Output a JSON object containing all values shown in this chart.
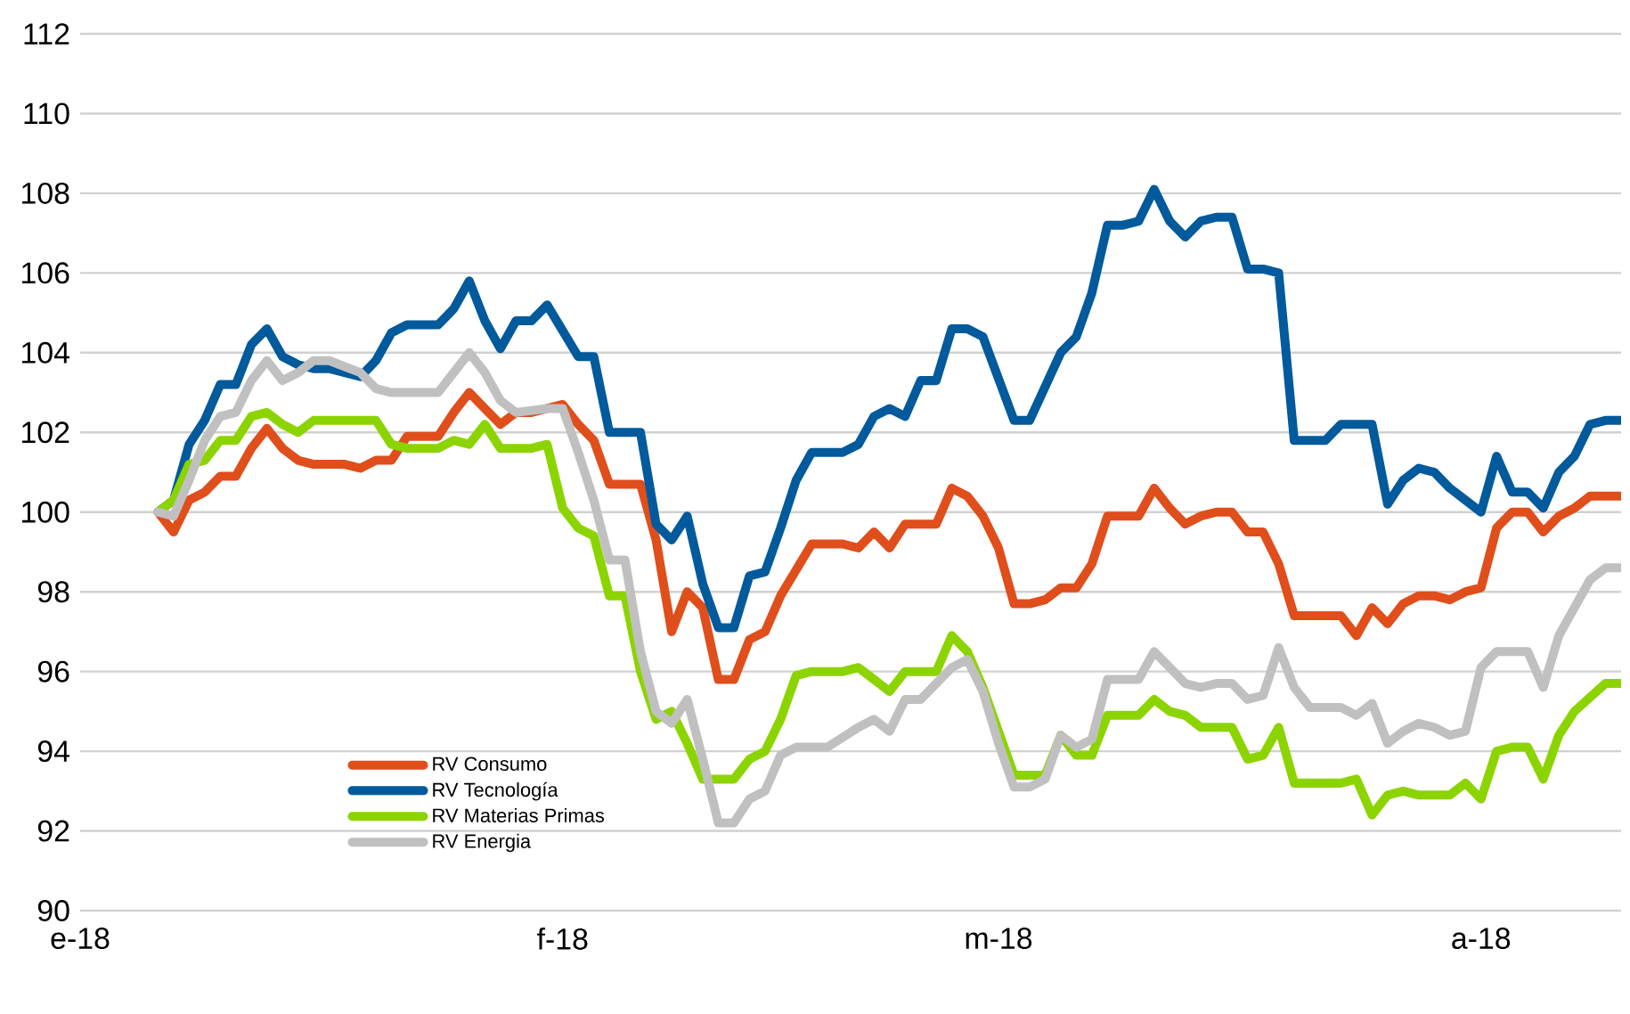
{
  "chart_data": {
    "type": "line",
    "xlim": [
      "2018-01-01",
      "2018-04-10"
    ],
    "ylim": [
      90,
      112
    ],
    "xticks": [
      {
        "value": "2018-01-01",
        "label": "e-18"
      },
      {
        "value": "2018-02-01",
        "label": "f-18"
      },
      {
        "value": "2018-03-01",
        "label": "m-18"
      },
      {
        "value": "2018-04-01",
        "label": "a-18"
      }
    ],
    "yticks": [
      90,
      92,
      94,
      96,
      98,
      100,
      102,
      104,
      106,
      108,
      110,
      112
    ],
    "grid": "y",
    "legend": "bottom left",
    "series": [
      {
        "name": "RV Consumo",
        "color": "#e04e1b",
        "x": [
          "2018-01-06",
          "2018-01-07",
          "2018-01-08",
          "2018-01-09",
          "2018-01-10",
          "2018-01-11",
          "2018-01-12",
          "2018-01-13",
          "2018-01-14",
          "2018-01-15",
          "2018-01-16",
          "2018-01-18",
          "2018-01-19",
          "2018-01-20",
          "2018-01-21",
          "2018-01-22",
          "2018-01-24",
          "2018-01-25",
          "2018-01-26",
          "2018-01-27",
          "2018-01-28",
          "2018-01-29",
          "2018-01-30",
          "2018-02-01",
          "2018-02-02",
          "2018-02-03",
          "2018-02-04",
          "2018-02-06",
          "2018-02-07",
          "2018-02-08",
          "2018-02-09",
          "2018-02-10",
          "2018-02-11",
          "2018-02-12",
          "2018-02-13",
          "2018-02-14",
          "2018-02-15",
          "2018-02-17",
          "2018-02-19",
          "2018-02-20",
          "2018-02-21",
          "2018-02-22",
          "2018-02-23",
          "2018-02-25",
          "2018-02-26",
          "2018-02-27",
          "2018-02-28",
          "2018-03-01",
          "2018-03-02",
          "2018-03-03",
          "2018-03-04",
          "2018-03-05",
          "2018-03-06",
          "2018-03-07",
          "2018-03-08",
          "2018-03-10",
          "2018-03-11",
          "2018-03-12",
          "2018-03-13",
          "2018-03-14",
          "2018-03-15",
          "2018-03-16",
          "2018-03-17",
          "2018-03-18",
          "2018-03-19",
          "2018-03-20",
          "2018-03-23",
          "2018-03-24",
          "2018-03-25",
          "2018-03-26",
          "2018-03-27",
          "2018-03-28",
          "2018-03-29",
          "2018-03-30",
          "2018-03-31",
          "2018-04-01",
          "2018-04-02",
          "2018-04-03",
          "2018-04-04",
          "2018-04-05",
          "2018-04-06",
          "2018-04-07",
          "2018-04-08",
          "2018-04-10"
        ],
        "values": [
          100,
          99.5,
          100.3,
          100.5,
          100.9,
          100.9,
          101.6,
          102.1,
          101.6,
          101.3,
          101.2,
          101.2,
          101.1,
          101.3,
          101.3,
          101.9,
          101.9,
          102.5,
          103.0,
          102.6,
          102.2,
          102.5,
          102.5,
          102.7,
          102.2,
          101.8,
          100.7,
          100.7,
          99.3,
          97.0,
          98.0,
          97.6,
          95.8,
          95.8,
          96.8,
          97.0,
          97.9,
          99.2,
          99.2,
          99.1,
          99.5,
          99.1,
          99.7,
          99.7,
          100.6,
          100.4,
          99.9,
          99.1,
          97.7,
          97.7,
          97.8,
          98.1,
          98.1,
          98.7,
          99.9,
          99.9,
          100.6,
          100.1,
          99.7,
          99.9,
          100.0,
          100.0,
          99.5,
          99.5,
          98.7,
          97.4,
          97.4,
          96.9,
          97.6,
          97.2,
          97.7,
          97.9,
          97.9,
          97.8,
          98.0,
          98.1,
          99.6,
          100.0,
          100.0,
          99.5,
          99.9,
          100.1,
          100.4,
          100.4
        ]
      },
      {
        "name": "RV Tecnología",
        "color": "#005a9c",
        "x": [
          "2018-01-06",
          "2018-01-07",
          "2018-01-08",
          "2018-01-09",
          "2018-01-10",
          "2018-01-11",
          "2018-01-12",
          "2018-01-13",
          "2018-01-14",
          "2018-01-15",
          "2018-01-16",
          "2018-01-17",
          "2018-01-19",
          "2018-01-20",
          "2018-01-21",
          "2018-01-22",
          "2018-01-24",
          "2018-01-25",
          "2018-01-26",
          "2018-01-27",
          "2018-01-28",
          "2018-01-29",
          "2018-01-30",
          "2018-01-31",
          "2018-02-02",
          "2018-02-03",
          "2018-02-04",
          "2018-02-06",
          "2018-02-07",
          "2018-02-08",
          "2018-02-09",
          "2018-02-10",
          "2018-02-11",
          "2018-02-12",
          "2018-02-13",
          "2018-02-14",
          "2018-02-15",
          "2018-02-16",
          "2018-02-17",
          "2018-02-19",
          "2018-02-20",
          "2018-02-21",
          "2018-02-22",
          "2018-02-23",
          "2018-02-24",
          "2018-02-25",
          "2018-02-26",
          "2018-02-27",
          "2018-02-28",
          "2018-03-02",
          "2018-03-03",
          "2018-03-05",
          "2018-03-06",
          "2018-03-07",
          "2018-03-08",
          "2018-03-09",
          "2018-03-10",
          "2018-03-11",
          "2018-03-12",
          "2018-03-13",
          "2018-03-14",
          "2018-03-15",
          "2018-03-16",
          "2018-03-17",
          "2018-03-18",
          "2018-03-19",
          "2018-03-20",
          "2018-03-22",
          "2018-03-23",
          "2018-03-25",
          "2018-03-26",
          "2018-03-27",
          "2018-03-28",
          "2018-03-29",
          "2018-03-30",
          "2018-03-31",
          "2018-04-01",
          "2018-04-02",
          "2018-04-03",
          "2018-04-04",
          "2018-04-05",
          "2018-04-06",
          "2018-04-07",
          "2018-04-08",
          "2018-04-09",
          "2018-04-10"
        ],
        "values": [
          100,
          100.3,
          101.7,
          102.3,
          103.2,
          103.2,
          104.2,
          104.6,
          103.9,
          103.7,
          103.6,
          103.6,
          103.4,
          103.8,
          104.5,
          104.7,
          104.7,
          105.1,
          105.8,
          104.8,
          104.1,
          104.8,
          104.8,
          105.2,
          103.9,
          103.9,
          102.0,
          102.0,
          99.7,
          99.3,
          99.9,
          98.2,
          97.1,
          97.1,
          98.4,
          98.5,
          99.6,
          100.8,
          101.5,
          101.5,
          101.7,
          102.4,
          102.6,
          102.4,
          103.3,
          103.3,
          104.6,
          104.6,
          104.4,
          102.3,
          102.3,
          104.0,
          104.4,
          105.5,
          107.2,
          107.2,
          107.3,
          108.1,
          107.3,
          106.9,
          107.3,
          107.4,
          107.4,
          106.1,
          106.1,
          106.0,
          101.8,
          101.8,
          102.2,
          102.2,
          100.2,
          100.8,
          101.1,
          101.0,
          100.6,
          100.3,
          100.0,
          101.4,
          100.5,
          100.5,
          100.1,
          101.0,
          101.4,
          102.2,
          102.3,
          102.3
        ]
      },
      {
        "name": "RV Materias Primas",
        "color": "#8cd400",
        "x": [
          "2018-01-06",
          "2018-01-07",
          "2018-01-08",
          "2018-01-09",
          "2018-01-10",
          "2018-01-11",
          "2018-01-12",
          "2018-01-13",
          "2018-01-14",
          "2018-01-15",
          "2018-01-16",
          "2018-01-20",
          "2018-01-21",
          "2018-01-22",
          "2018-01-24",
          "2018-01-25",
          "2018-01-26",
          "2018-01-27",
          "2018-01-28",
          "2018-01-30",
          "2018-01-31",
          "2018-02-01",
          "2018-02-02",
          "2018-02-03",
          "2018-02-04",
          "2018-02-05",
          "2018-02-06",
          "2018-02-07",
          "2018-02-08",
          "2018-02-09",
          "2018-02-10",
          "2018-02-12",
          "2018-02-13",
          "2018-02-14",
          "2018-02-15",
          "2018-02-16",
          "2018-02-17",
          "2018-02-19",
          "2018-02-20",
          "2018-02-21",
          "2018-02-22",
          "2018-02-23",
          "2018-02-25",
          "2018-02-26",
          "2018-02-27",
          "2018-02-28",
          "2018-03-01",
          "2018-03-02",
          "2018-03-03",
          "2018-03-04",
          "2018-03-05",
          "2018-03-06",
          "2018-03-07",
          "2018-03-08",
          "2018-03-10",
          "2018-03-11",
          "2018-03-12",
          "2018-03-13",
          "2018-03-14",
          "2018-03-16",
          "2018-03-17",
          "2018-03-18",
          "2018-03-19",
          "2018-03-20",
          "2018-03-23",
          "2018-03-24",
          "2018-03-25",
          "2018-03-26",
          "2018-03-27",
          "2018-03-28",
          "2018-03-30",
          "2018-03-31",
          "2018-04-01",
          "2018-04-02",
          "2018-04-03",
          "2018-04-04",
          "2018-04-05",
          "2018-04-06",
          "2018-04-07",
          "2018-04-09",
          "2018-04-10"
        ],
        "values": [
          100,
          100.3,
          101.2,
          101.3,
          101.8,
          101.8,
          102.4,
          102.5,
          102.2,
          102.0,
          102.3,
          102.3,
          101.7,
          101.6,
          101.6,
          101.8,
          101.7,
          102.2,
          101.6,
          101.6,
          101.7,
          100.1,
          99.6,
          99.4,
          97.9,
          97.9,
          96.0,
          94.8,
          95.0,
          94.2,
          93.3,
          93.3,
          93.8,
          94.0,
          94.8,
          95.9,
          96.0,
          96.0,
          96.1,
          95.8,
          95.5,
          96.0,
          96.0,
          96.9,
          96.5,
          95.6,
          94.5,
          93.4,
          93.4,
          93.4,
          94.4,
          93.9,
          93.9,
          94.9,
          94.9,
          95.3,
          95.0,
          94.9,
          94.6,
          94.6,
          93.8,
          93.9,
          94.6,
          93.2,
          93.2,
          93.3,
          92.4,
          92.9,
          93.0,
          92.9,
          92.9,
          93.2,
          92.8,
          94.0,
          94.1,
          94.1,
          93.3,
          94.4,
          95.0,
          95.7,
          95.7
        ]
      },
      {
        "name": "RV Energia",
        "color": "#c0c0c0",
        "x": [
          "2018-01-06",
          "2018-01-07",
          "2018-01-08",
          "2018-01-09",
          "2018-01-10",
          "2018-01-11",
          "2018-01-12",
          "2018-01-13",
          "2018-01-14",
          "2018-01-15",
          "2018-01-16",
          "2018-01-17",
          "2018-01-19",
          "2018-01-20",
          "2018-01-21",
          "2018-01-24",
          "2018-01-25",
          "2018-01-26",
          "2018-01-27",
          "2018-01-28",
          "2018-01-29",
          "2018-01-31",
          "2018-02-01",
          "2018-02-02",
          "2018-02-03",
          "2018-02-04",
          "2018-02-05",
          "2018-02-06",
          "2018-02-07",
          "2018-02-08",
          "2018-02-09",
          "2018-02-10",
          "2018-02-11",
          "2018-02-12",
          "2018-02-13",
          "2018-02-14",
          "2018-02-15",
          "2018-02-16",
          "2018-02-18",
          "2018-02-20",
          "2018-02-21",
          "2018-02-22",
          "2018-02-23",
          "2018-02-24",
          "2018-02-26",
          "2018-02-27",
          "2018-02-28",
          "2018-03-01",
          "2018-03-02",
          "2018-03-03",
          "2018-03-04",
          "2018-03-05",
          "2018-03-06",
          "2018-03-07",
          "2018-03-08",
          "2018-03-10",
          "2018-03-11",
          "2018-03-12",
          "2018-03-13",
          "2018-03-14",
          "2018-03-15",
          "2018-03-16",
          "2018-03-17",
          "2018-03-18",
          "2018-03-19",
          "2018-03-20",
          "2018-03-21",
          "2018-03-23",
          "2018-03-24",
          "2018-03-25",
          "2018-03-26",
          "2018-03-27",
          "2018-03-28",
          "2018-03-29",
          "2018-03-30",
          "2018-03-31",
          "2018-04-01",
          "2018-04-02",
          "2018-04-04",
          "2018-04-05",
          "2018-04-06",
          "2018-04-08",
          "2018-04-09",
          "2018-04-10"
        ],
        "values": [
          100,
          99.9,
          100.8,
          101.8,
          102.4,
          102.5,
          103.3,
          103.8,
          103.3,
          103.5,
          103.8,
          103.8,
          103.5,
          103.1,
          103.0,
          103.0,
          103.5,
          104.0,
          103.5,
          102.8,
          102.5,
          102.6,
          102.6,
          101.5,
          100.3,
          98.8,
          98.8,
          96.5,
          95.0,
          94.7,
          95.3,
          93.8,
          92.2,
          92.2,
          92.8,
          93.0,
          93.9,
          94.1,
          94.1,
          94.6,
          94.8,
          94.5,
          95.3,
          95.3,
          96.1,
          96.3,
          95.5,
          94.2,
          93.1,
          93.1,
          93.3,
          94.4,
          94.1,
          94.3,
          95.8,
          95.8,
          96.5,
          96.1,
          95.7,
          95.6,
          95.7,
          95.7,
          95.3,
          95.4,
          96.6,
          95.6,
          95.1,
          95.1,
          94.9,
          95.2,
          94.2,
          94.5,
          94.7,
          94.6,
          94.4,
          94.5,
          96.1,
          96.5,
          96.5,
          95.6,
          96.9,
          98.3,
          98.6,
          98.6
        ]
      }
    ]
  }
}
